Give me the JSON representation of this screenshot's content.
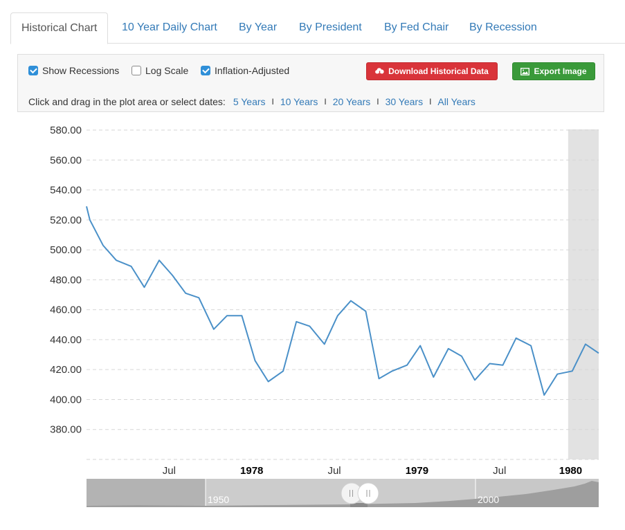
{
  "tabs": [
    {
      "label": "Historical Chart",
      "active": true
    },
    {
      "label": "10 Year Daily Chart",
      "active": false
    },
    {
      "label": "By Year",
      "active": false
    },
    {
      "label": "By President",
      "active": false
    },
    {
      "label": "By Fed Chair",
      "active": false
    },
    {
      "label": "By Recession",
      "active": false
    }
  ],
  "controls": {
    "show_recessions": {
      "label": "Show Recessions",
      "checked": true
    },
    "log_scale": {
      "label": "Log Scale",
      "checked": false
    },
    "inflation_adjusted": {
      "label": "Inflation-Adjusted",
      "checked": true
    },
    "download_label": "Download Historical Data",
    "export_label": "Export Image",
    "download_color": "#d9343a",
    "export_color": "#3a9a3a",
    "range_prompt": "Click and drag in the plot area or select dates:",
    "ranges": [
      "5 Years",
      "10 Years",
      "20 Years",
      "30 Years",
      "All Years"
    ],
    "range_separator": "I"
  },
  "chart_data": {
    "type": "line",
    "line_color": "#4a90c8",
    "recession_color": "#e2e2e2",
    "y_ticks": [
      "580.00",
      "560.00",
      "540.00",
      "520.00",
      "500.00",
      "480.00",
      "460.00",
      "440.00",
      "420.00",
      "400.00",
      "380.00"
    ],
    "ylim": [
      360,
      580
    ],
    "x_ticks": [
      {
        "label": "Jul",
        "t": 1977.5,
        "major": false
      },
      {
        "label": "1978",
        "t": 1978.0,
        "major": true
      },
      {
        "label": "Jul",
        "t": 1978.5,
        "major": false
      },
      {
        "label": "1979",
        "t": 1979.0,
        "major": true
      },
      {
        "label": "Jul",
        "t": 1979.5,
        "major": false
      },
      {
        "label": "1980",
        "t": 1980.0,
        "major": true
      }
    ],
    "xlim": [
      1977.0,
      1980.1
    ],
    "recession": {
      "start": 1979.915,
      "end": 1980.1
    },
    "series": [
      {
        "x": [
          1977.0,
          1977.02,
          1977.1,
          1977.18,
          1977.27,
          1977.35,
          1977.44,
          1977.52,
          1977.6,
          1977.68,
          1977.77,
          1977.85,
          1977.94,
          1978.02,
          1978.1,
          1978.19,
          1978.27,
          1978.35,
          1978.44,
          1978.52,
          1978.6,
          1978.69,
          1978.77,
          1978.85,
          1978.94,
          1979.02,
          1979.1,
          1979.19,
          1979.27,
          1979.35,
          1979.44,
          1979.52,
          1979.6,
          1979.69,
          1979.77,
          1979.85,
          1979.94,
          1980.02,
          1980.1
        ],
        "y": [
          529,
          520,
          503,
          493,
          489,
          475,
          493,
          483,
          471,
          468,
          447,
          456,
          456,
          426,
          412,
          419,
          452,
          449,
          437,
          456,
          466,
          459,
          414,
          419,
          423,
          436,
          415,
          434,
          429,
          413,
          424,
          423,
          441,
          436,
          403,
          417,
          419,
          437,
          431
        ]
      }
    ]
  },
  "navigator": {
    "labels": [
      "1950",
      "2000"
    ]
  }
}
